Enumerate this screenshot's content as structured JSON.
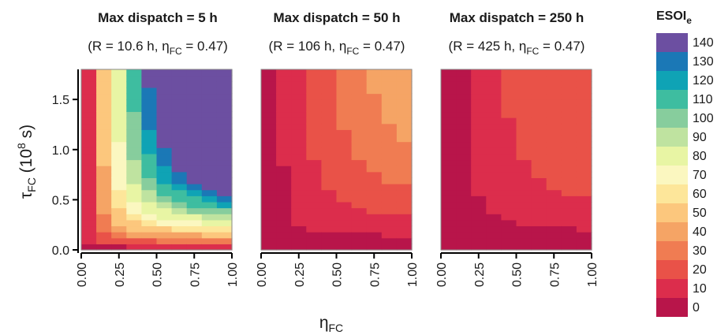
{
  "figure": {
    "ylabel": {
      "tau": "τ",
      "sub": "FC",
      "mid": " (10",
      "sup": "8",
      "end": " s)"
    },
    "xlabel": {
      "eta": "η",
      "sub": "FC"
    }
  },
  "legend": {
    "title_main": "ESOI",
    "title_sub": "e",
    "levels": [
      140,
      130,
      120,
      110,
      100,
      90,
      80,
      70,
      60,
      50,
      40,
      30,
      20,
      10,
      0
    ],
    "colors": [
      "#6c4fa1",
      "#1b78b6",
      "#0fa3b5",
      "#3ebda0",
      "#87cd9d",
      "#bfe3a0",
      "#e8f5a4",
      "#fbf7c0",
      "#fde69a",
      "#fcc77d",
      "#f5a465",
      "#f07c52",
      "#e95248",
      "#dc2d4c",
      "#b8154a"
    ]
  },
  "chart_data": [
    {
      "type": "heatmap",
      "title": "Max dispatch = 5 h",
      "subtitle": {
        "a": "(R = 10.6 h, ",
        "eta": "η",
        "sub": "FC",
        "b": " = 0.47)"
      },
      "x_ticks": [
        "0.00",
        "0.25",
        "0.50",
        "0.75",
        "1.00"
      ],
      "y_ticks": [
        "0.0",
        "0.5",
        "1.0",
        "1.5"
      ],
      "xlim": [
        0,
        1
      ],
      "ylim": [
        0,
        1.8
      ],
      "model": {
        "c": 400,
        "offset": 0.02,
        "cap": 140
      }
    },
    {
      "type": "heatmap",
      "title": "Max dispatch = 50 h",
      "subtitle": {
        "a": "(R = 106 h, ",
        "eta": "η",
        "sub": "FC",
        "b": " = 0.47)"
      },
      "x_ticks": [
        "0.00",
        "0.25",
        "0.50",
        "0.75",
        "1.00"
      ],
      "y_ticks": [
        "0.0",
        "0.5",
        "1.0",
        "1.5"
      ],
      "xlim": [
        0,
        1
      ],
      "ylim": [
        0,
        1.8
      ],
      "model": {
        "c": 80,
        "offset": 0.02,
        "cap": 55
      }
    },
    {
      "type": "heatmap",
      "title": "Max dispatch = 250 h",
      "subtitle": {
        "a": "(R = 425 h, ",
        "eta": "η",
        "sub": "FC",
        "b": " = 0.47)"
      },
      "x_ticks": [
        "0.00",
        "0.25",
        "0.50",
        "0.75",
        "1.00"
      ],
      "y_ticks": [
        "0.0",
        "0.5",
        "1.0",
        "1.5"
      ],
      "xlim": [
        0,
        1
      ],
      "ylim": [
        0,
        1.8
      ],
      "model": {
        "c": 60,
        "offset": 0.02,
        "cap": 20.5
      }
    }
  ]
}
